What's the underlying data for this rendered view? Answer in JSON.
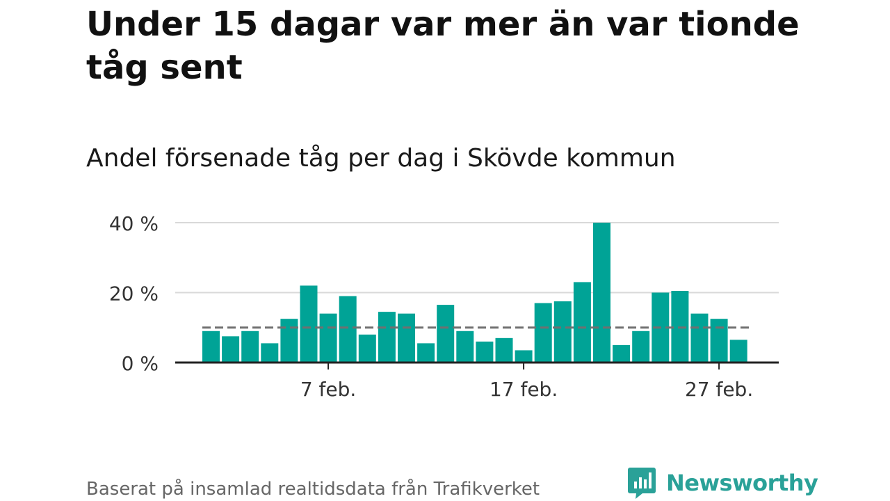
{
  "title": "Under 15 dagar var mer än var tionde tåg sent",
  "subtitle": "Andel försenade tåg per dag i Skövde kommun",
  "source": "Baserat på insamlad realtidsdata från Trafikverket",
  "brand": {
    "name": "Newsworthy",
    "icon": "newsworthy-logo-icon"
  },
  "colors": {
    "bar": "#00a396",
    "reference": "#707070",
    "grid": "#d9d9d9",
    "axis": "#222222",
    "brand": "#2aa198"
  },
  "chart_data": {
    "type": "bar",
    "x": [
      "2/1",
      "2/2",
      "2/3",
      "2/4",
      "2/5",
      "2/6",
      "2/7",
      "2/8",
      "2/9",
      "2/10",
      "2/11",
      "2/12",
      "2/13",
      "2/14",
      "2/15",
      "2/16",
      "2/17",
      "2/18",
      "2/19",
      "2/20",
      "2/21",
      "2/22",
      "2/23",
      "2/24",
      "2/25",
      "2/26",
      "2/27",
      "2/28"
    ],
    "values": [
      9,
      7.5,
      9,
      5.5,
      12.5,
      22,
      14,
      19,
      8,
      14.5,
      14,
      5.5,
      16.5,
      9,
      6,
      7,
      3.5,
      17,
      17.5,
      23,
      40,
      5,
      9,
      20,
      20.5,
      14,
      12.5,
      6.5
    ],
    "reference_line": 10,
    "ylim": [
      0,
      40
    ],
    "yticks": [
      {
        "value": 0,
        "label": "0 %"
      },
      {
        "value": 20,
        "label": "20 %"
      },
      {
        "value": 40,
        "label": "40 %"
      }
    ],
    "xticks": [
      {
        "index": 6,
        "label": "7 feb."
      },
      {
        "index": 16,
        "label": "17 feb."
      },
      {
        "index": 26,
        "label": "27 feb."
      }
    ],
    "grid": true,
    "legend": "none"
  }
}
